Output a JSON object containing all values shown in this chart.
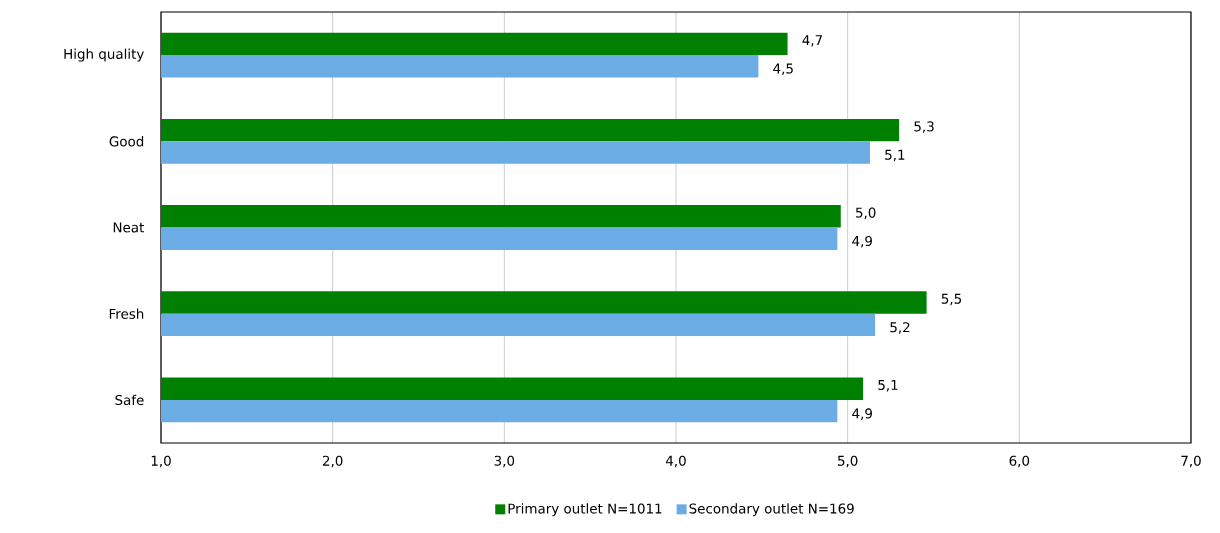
{
  "chart_data": {
    "type": "bar",
    "orientation": "horizontal",
    "categories": [
      "High quality",
      "Good",
      "Neat",
      "Fresh",
      "Safe"
    ],
    "series": [
      {
        "name": "Primary outlet N=1011",
        "color": "#008000",
        "values": [
          4.65,
          5.3,
          4.96,
          5.46,
          5.09
        ],
        "value_labels": [
          "4,7",
          "5,3",
          "5,0",
          "5,5",
          "5,1"
        ]
      },
      {
        "name": "Secondary outlet N=169",
        "color": "#6cace4",
        "values": [
          4.48,
          5.13,
          4.94,
          5.16,
          4.94
        ],
        "value_labels": [
          "4,5",
          "5,1",
          "4,9",
          "5,2",
          "4,9"
        ]
      }
    ],
    "xlim": [
      1,
      7
    ],
    "xticks": [
      {
        "value": 1,
        "label": "1,0"
      },
      {
        "value": 2,
        "label": "2,0"
      },
      {
        "value": 3,
        "label": "3,0"
      },
      {
        "value": 4,
        "label": "4,0"
      },
      {
        "value": 5,
        "label": "5,0"
      },
      {
        "value": 6,
        "label": "6,0"
      },
      {
        "value": 7,
        "label": "7,0"
      }
    ],
    "grid": "x",
    "legend": "bottom"
  }
}
